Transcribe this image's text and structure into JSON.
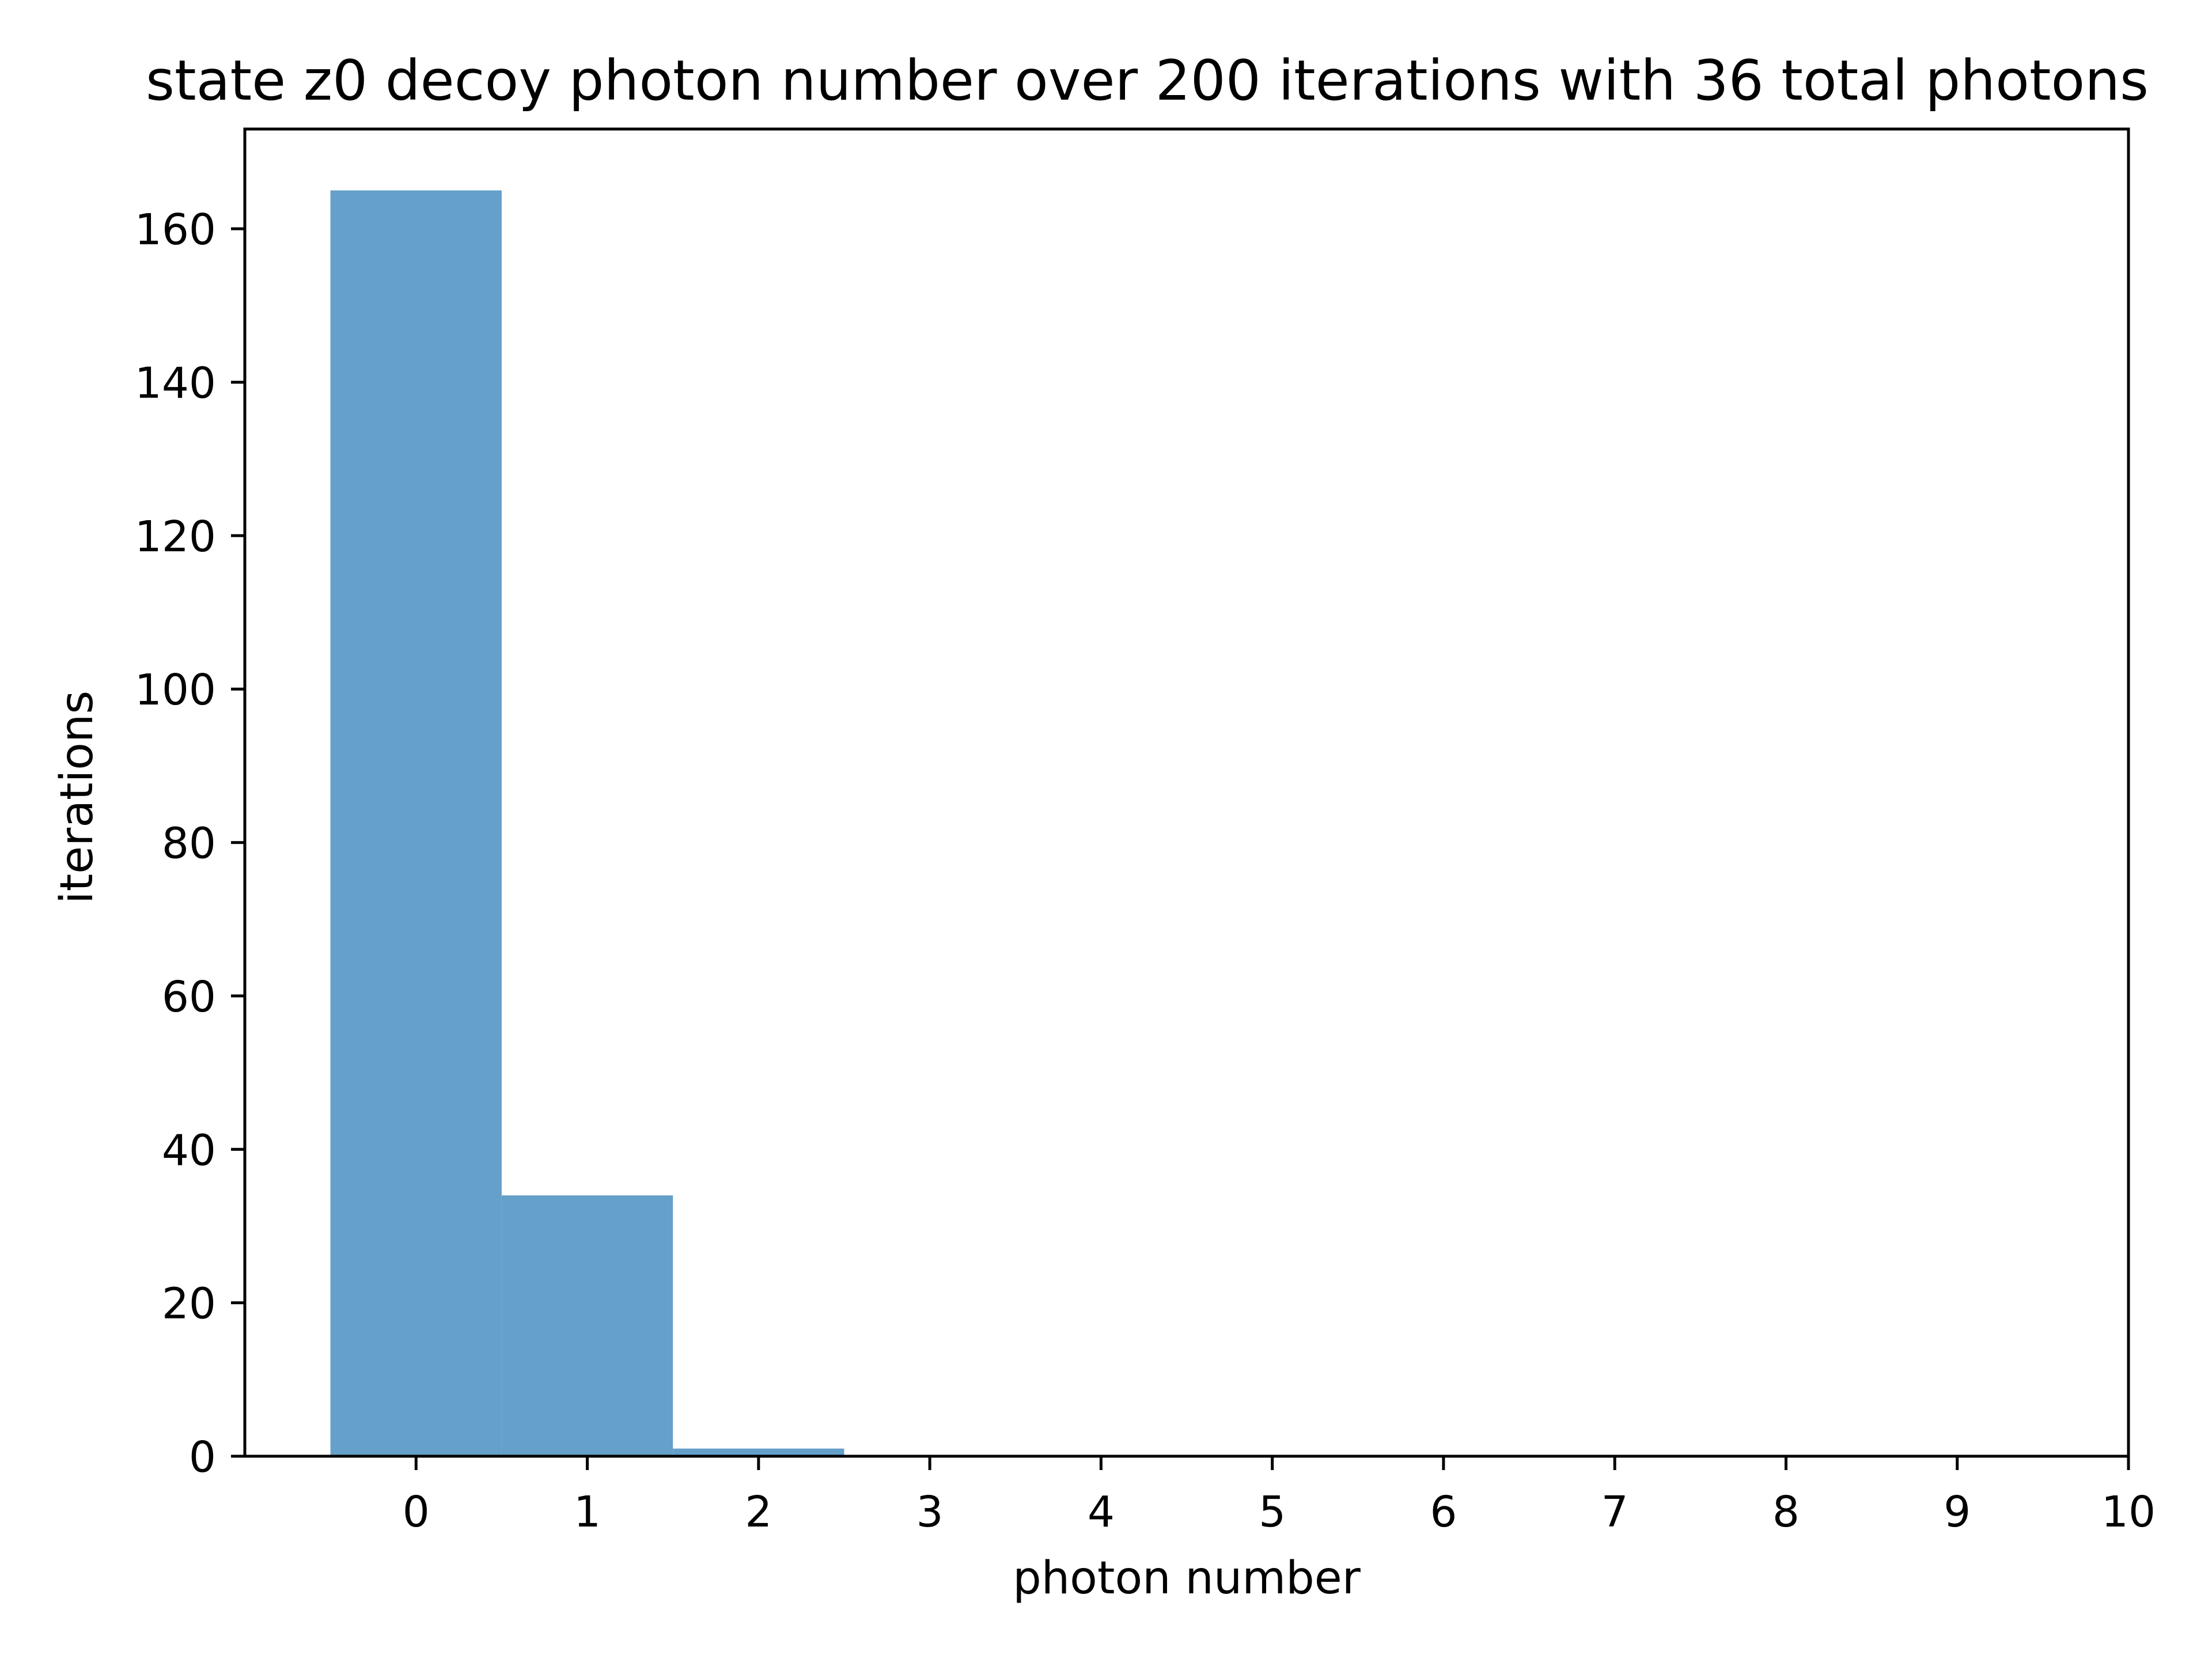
{
  "chart_data": {
    "type": "bar",
    "title": "state z0 decoy photon number over 200 iterations with 36 total photons",
    "xlabel": "photon number",
    "ylabel": "iterations",
    "bins": [
      {
        "x_start": -0.5,
        "x_end": 0.5,
        "count": 165
      },
      {
        "x_start": 0.5,
        "x_end": 1.5,
        "count": 34
      },
      {
        "x_start": 1.5,
        "x_end": 2.5,
        "count": 1
      }
    ],
    "xlim": [
      -1,
      10
    ],
    "ylim": [
      0,
      173
    ],
    "xticks": [
      "0",
      "1",
      "2",
      "3",
      "4",
      "5",
      "6",
      "7",
      "8",
      "9",
      "10"
    ],
    "yticks": [
      "0",
      "20",
      "40",
      "60",
      "80",
      "100",
      "120",
      "140",
      "160"
    ],
    "bar_color": "#64a0ca",
    "grid": false,
    "legend": "none"
  }
}
